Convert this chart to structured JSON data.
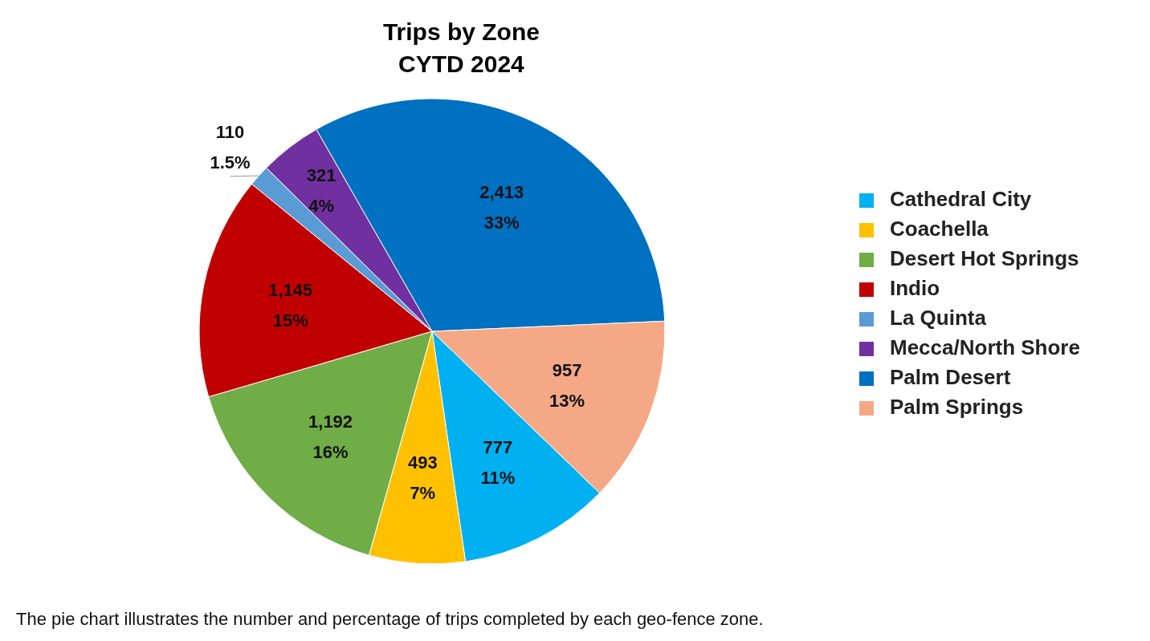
{
  "chart_data": {
    "type": "pie",
    "title": "Trips by Zone",
    "subtitle": "CYTD 2024",
    "categories": [
      "Cathedral City",
      "Coachella",
      "Desert Hot Springs",
      "Indio",
      "La Quinta",
      "Mecca/North Shore",
      "Palm Desert",
      "Palm Springs"
    ],
    "values": [
      777,
      493,
      1192,
      1145,
      110,
      321,
      2413,
      957
    ],
    "colors": [
      "#00b0f0",
      "#ffc000",
      "#70ad47",
      "#c00000",
      "#5b9bd5",
      "#7030a0",
      "#0070c0",
      "#f4a886"
    ],
    "value_labels": [
      "777\n11%",
      "493\n7%",
      "1,192\n16%",
      "1,145\n15%",
      "110\n1.5%",
      "321\n4%",
      "2,413\n33%",
      "957\n13%"
    ],
    "legend": "right",
    "annotations": [
      "The pie chart illustrates the number and percentage of trips completed by each geo-fence zone."
    ]
  }
}
